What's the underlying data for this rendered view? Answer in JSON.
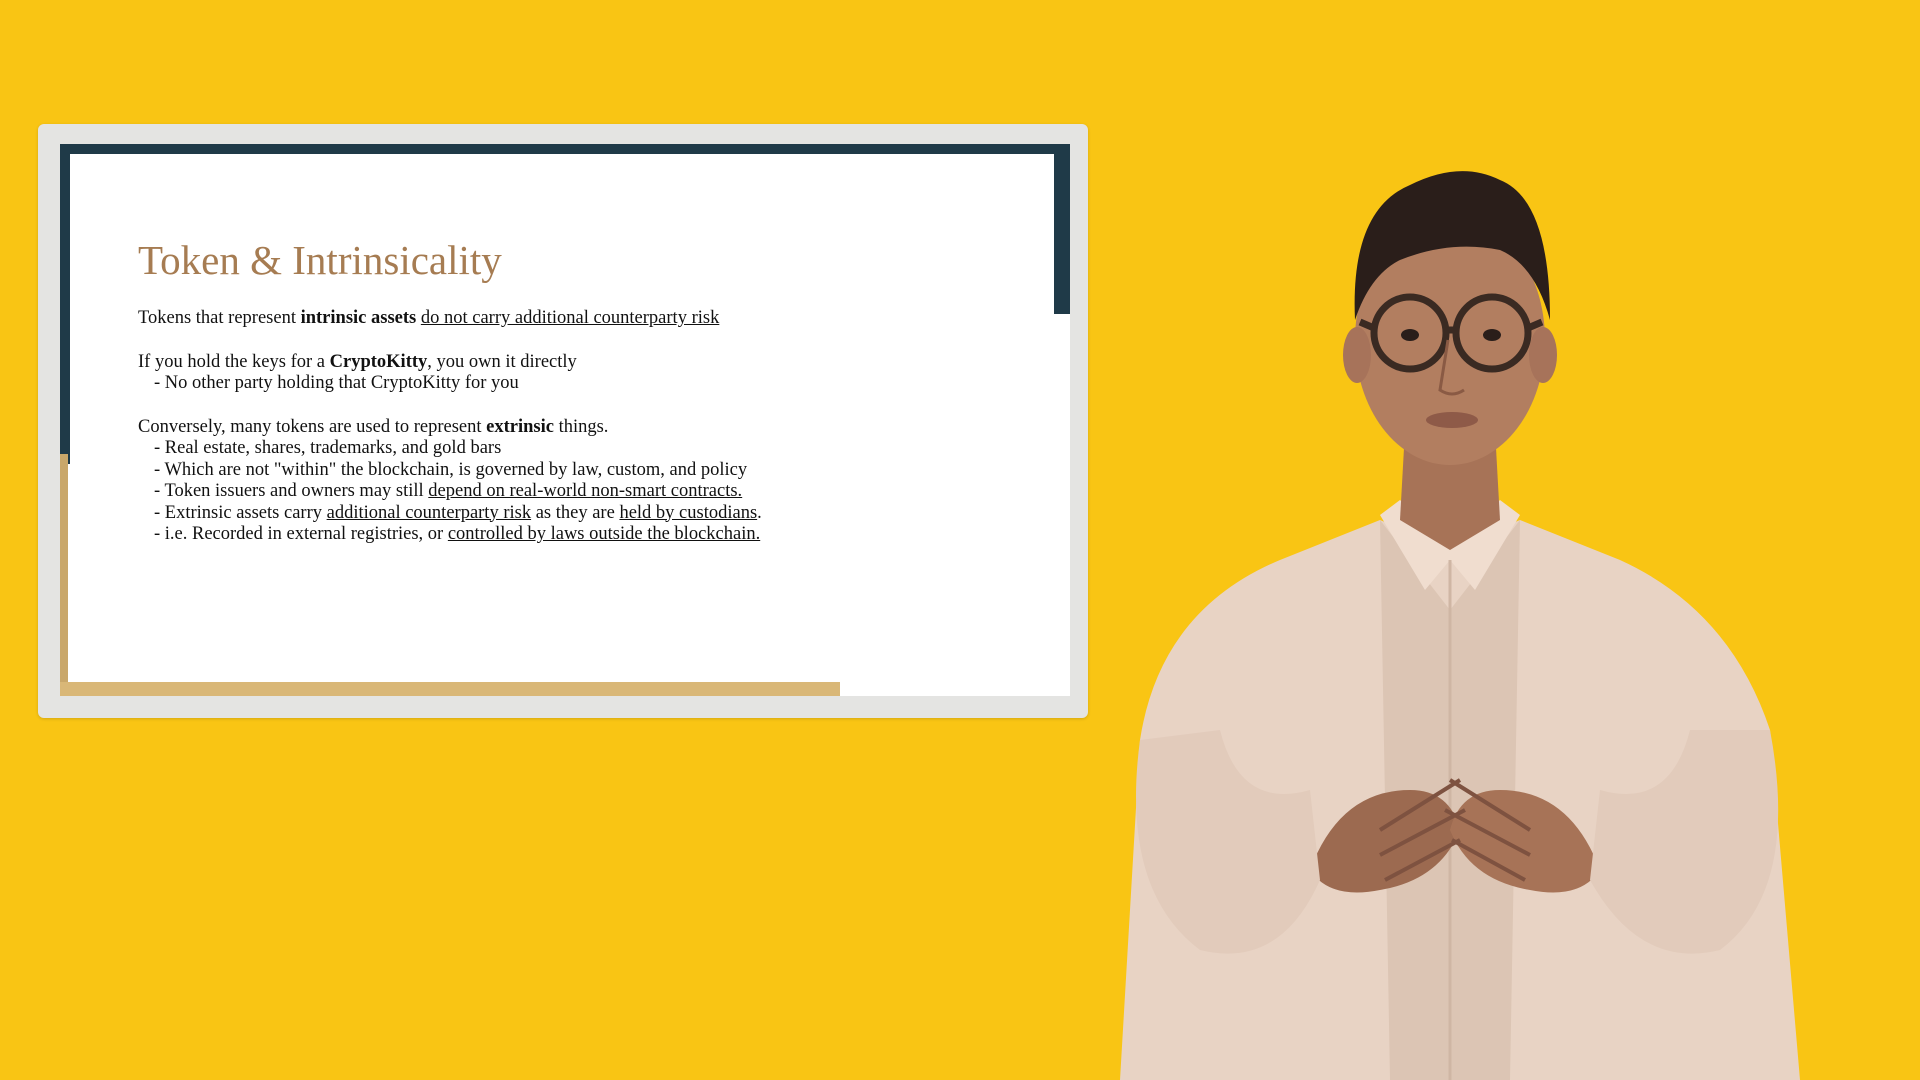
{
  "slide": {
    "title": "Token & Intrinsicality",
    "p1": {
      "a": "Tokens that represent ",
      "b": "intrinsic assets",
      "c": " ",
      "d": "do not carry additional counterparty risk"
    },
    "p2": {
      "a": "If you hold the keys for a ",
      "b": "CryptoKitty",
      "c": ", you own it directly",
      "sub": "- No other party holding that CryptoKitty for you"
    },
    "p3": {
      "a": "Conversely, many tokens are used to represent ",
      "b": "extrinsic",
      "c": " things.",
      "items": [
        {
          "a": "- Real estate, shares, trademarks, and gold bars"
        },
        {
          "a": "- Which are not \"within\" the blockchain, is governed by law, custom, and policy"
        },
        {
          "a": "- Token issuers and owners may still ",
          "u": "depend on real-world non-smart contracts."
        },
        {
          "a": "- Extrinsic assets carry ",
          "u1": "additional counterparty risk",
          "b": " as they are ",
          "u2": "held by custodians",
          "c": "."
        },
        {
          "a": "- i.e. Recorded in external registries, or ",
          "u": "controlled by laws outside the blockchain."
        }
      ]
    }
  },
  "colors": {
    "background": "#F9C514",
    "title": "#A67C52",
    "accent_dark": "#1F3A48",
    "accent_tan": "#D9B777"
  }
}
